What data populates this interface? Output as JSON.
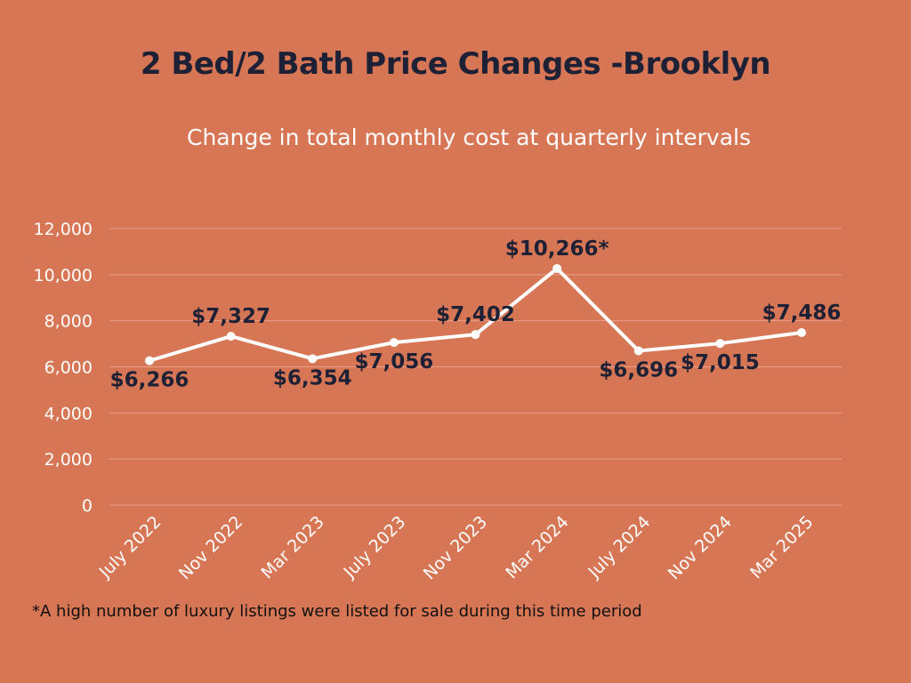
{
  "chart_data": {
    "type": "line",
    "title": "2 Bed/2 Bath Price Changes -Brooklyn",
    "subtitle": "Change in total monthly cost at quarterly intervals",
    "categories": [
      "July 2022",
      "Nov 2022",
      "Mar 2023",
      "July 2023",
      "Nov 2023",
      "Mar 2024",
      "July 2024",
      "Nov 2024",
      "Mar 2025"
    ],
    "series": [
      {
        "name": "Total monthly cost",
        "values": [
          6266,
          7327,
          6354,
          7056,
          7402,
          10266,
          6696,
          7015,
          7486
        ]
      }
    ],
    "data_labels": [
      "$6,266",
      "$7,327",
      "$6,354",
      "$7,056",
      "$7,402",
      "$10,266*",
      "$6,696",
      "$7,015",
      "$7,486"
    ],
    "label_position": [
      "below",
      "above",
      "below",
      "below",
      "above",
      "above",
      "below",
      "below",
      "above"
    ],
    "yticks": [
      0,
      2000,
      4000,
      6000,
      8000,
      10000,
      12000
    ],
    "ytick_labels": [
      "0",
      "2,000",
      "4,000",
      "6,000",
      "8,000",
      "10,000",
      "12,000"
    ],
    "ylim": [
      0,
      12000
    ],
    "xlabel": "",
    "ylabel": "",
    "grid": true,
    "footnote": "*A high number of luxury listings were listed for sale during this time period",
    "colors": {
      "background": "#D77655",
      "line": "#FFFFFF",
      "grid": "#E9A08A",
      "title": "#1E2135",
      "label": "#1E2135"
    }
  }
}
